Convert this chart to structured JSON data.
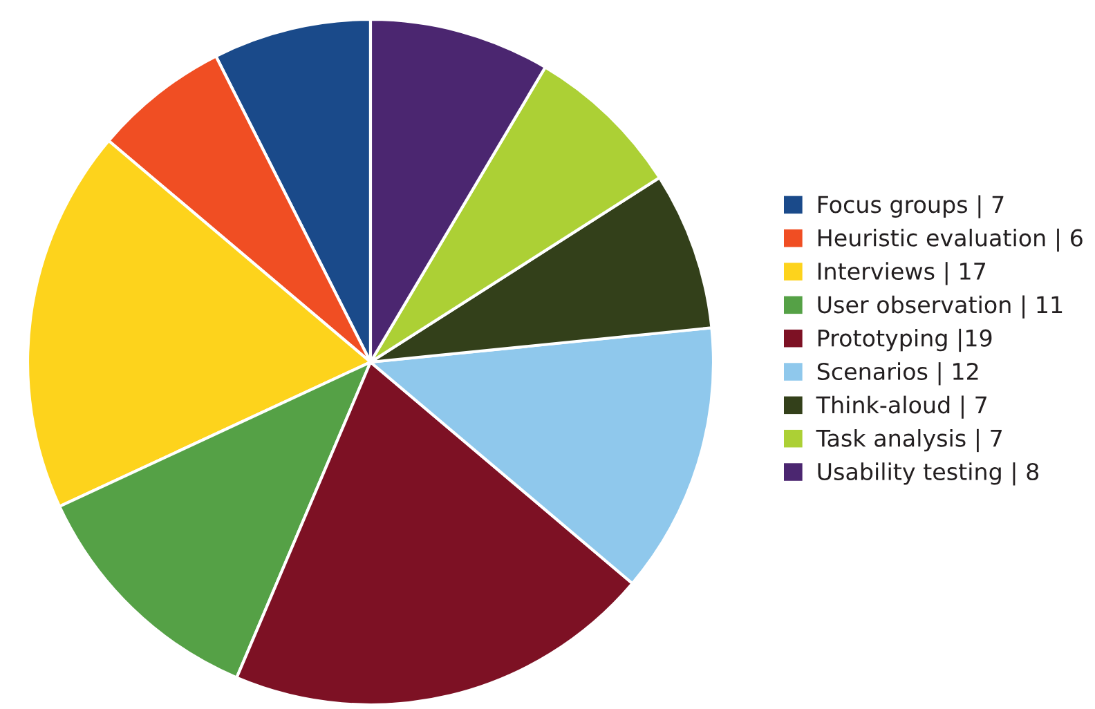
{
  "chart_data": {
    "type": "pie",
    "categories": [
      "Focus groups | 7",
      "Heuristic evaluation | 6",
      "Interviews | 17",
      "User observation | 11",
      "Prototyping |19",
      "Scenarios | 12",
      "Think-aloud | 7",
      "Task analysis | 7",
      "Usability testing | 8"
    ],
    "values": [
      7,
      6,
      17,
      11,
      19,
      12,
      7,
      7,
      8
    ],
    "colors": [
      "#1a4a8a",
      "#f04e23",
      "#fdd31c",
      "#55a146",
      "#7d1124",
      "#8fc8ec",
      "#33401a",
      "#acd035",
      "#4b2670"
    ],
    "legend": "right"
  }
}
